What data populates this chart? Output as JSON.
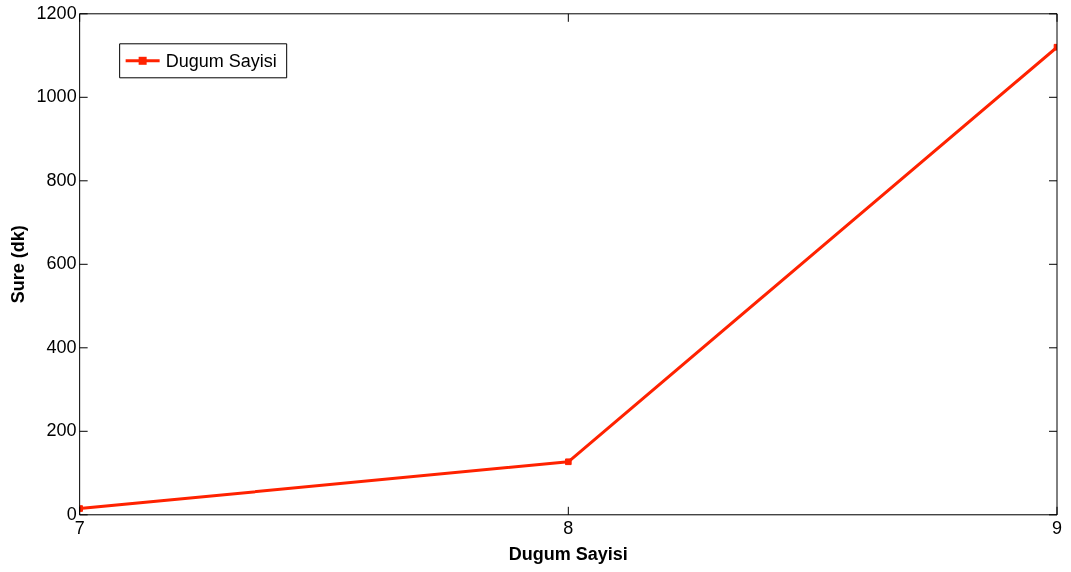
{
  "chart_data": {
    "type": "line",
    "xlabel": "Dugum Sayisi",
    "ylabel": "Sure (dk)",
    "x": [
      7,
      8,
      9
    ],
    "series": [
      {
        "name": "Dugum Sayisi",
        "color": "#ff2200",
        "values": [
          15,
          127,
          1120
        ]
      }
    ],
    "xlim": [
      7,
      9
    ],
    "xticks": [
      7,
      8,
      9
    ],
    "ylim": [
      0,
      1200
    ],
    "yticks": [
      0,
      200,
      400,
      600,
      800,
      1000,
      1200
    ],
    "grid": false,
    "legend": "top left",
    "marker": "square",
    "line_style": "solid"
  }
}
